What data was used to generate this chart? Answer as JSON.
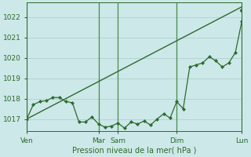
{
  "background_color": "#cce8e8",
  "grid_color": "#aacccc",
  "line_color": "#2d6a2d",
  "marker_color": "#2d6a2d",
  "xlabel": "Pression niveau de la mer( hPa )",
  "ylim": [
    1016.4,
    1022.7
  ],
  "yticks": [
    1017,
    1018,
    1019,
    1020,
    1021,
    1022
  ],
  "xtick_labels": [
    "Ven",
    "Mar",
    "Sam",
    "Dim",
    "Lun"
  ],
  "xtick_positions": [
    0,
    11,
    14,
    23,
    33
  ],
  "total_points": 34,
  "smooth_line_x": [
    0,
    33
  ],
  "smooth_line_y": [
    1017.0,
    1022.5
  ],
  "actual_x": [
    0,
    1,
    2,
    3,
    4,
    5,
    6,
    7,
    8,
    9,
    10,
    11,
    12,
    13,
    14,
    15,
    16,
    17,
    18,
    19,
    20,
    21,
    22,
    23,
    24,
    25,
    26,
    27,
    28,
    29,
    30,
    31,
    32,
    33
  ],
  "actual_y": [
    1017.0,
    1017.7,
    1017.85,
    1017.9,
    1018.05,
    1018.05,
    1017.85,
    1017.8,
    1016.85,
    1016.85,
    1017.1,
    1016.75,
    1016.6,
    1016.65,
    1016.8,
    1016.55,
    1016.85,
    1016.75,
    1016.9,
    1016.7,
    1017.0,
    1017.25,
    1017.05,
    1017.85,
    1017.5,
    1019.55,
    1019.65,
    1019.75,
    1020.05,
    1019.85,
    1019.55,
    1019.75,
    1020.25,
    1021.8
  ],
  "vline_x": [
    0,
    11,
    14,
    23,
    33
  ],
  "vline_color": "#4a8a4a",
  "extra_last_point_x": 33,
  "extra_last_point_y": 1022.35
}
